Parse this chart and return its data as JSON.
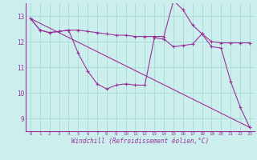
{
  "xlabel": "Windchill (Refroidissement éolien,°C)",
  "background_color": "#cceeed",
  "grid_color": "#aadddb",
  "line_color": "#993399",
  "xlim": [
    -0.5,
    23.5
  ],
  "ylim": [
    8.5,
    13.5
  ],
  "yticks": [
    9,
    10,
    11,
    12,
    13
  ],
  "xticks": [
    0,
    1,
    2,
    3,
    4,
    5,
    6,
    7,
    8,
    9,
    10,
    11,
    12,
    13,
    14,
    15,
    16,
    17,
    18,
    19,
    20,
    21,
    22,
    23
  ],
  "line1_x": [
    0,
    1,
    2,
    3,
    4,
    5,
    6,
    7,
    8,
    9,
    10,
    11,
    12,
    13,
    14,
    15,
    16,
    17,
    18,
    19,
    20,
    21,
    22,
    23
  ],
  "line1_y": [
    12.9,
    12.45,
    12.35,
    12.4,
    12.45,
    11.55,
    10.85,
    10.35,
    10.15,
    10.3,
    10.35,
    10.3,
    10.3,
    12.15,
    12.1,
    11.8,
    11.85,
    11.9,
    12.3,
    11.8,
    11.75,
    10.45,
    9.45,
    8.65
  ],
  "line2_x": [
    0,
    1,
    2,
    3,
    4,
    5,
    6,
    7,
    8,
    9,
    10,
    11,
    12,
    13,
    14,
    15,
    16,
    17,
    18,
    19,
    20,
    21,
    22,
    23
  ],
  "line2_y": [
    12.9,
    12.45,
    12.35,
    12.4,
    12.45,
    12.45,
    12.4,
    12.35,
    12.3,
    12.25,
    12.25,
    12.2,
    12.2,
    12.2,
    12.2,
    13.6,
    13.25,
    12.65,
    12.3,
    12.0,
    11.95,
    11.95,
    11.95,
    11.95
  ],
  "line3_x": [
    0,
    23
  ],
  "line3_y": [
    12.9,
    8.65
  ]
}
